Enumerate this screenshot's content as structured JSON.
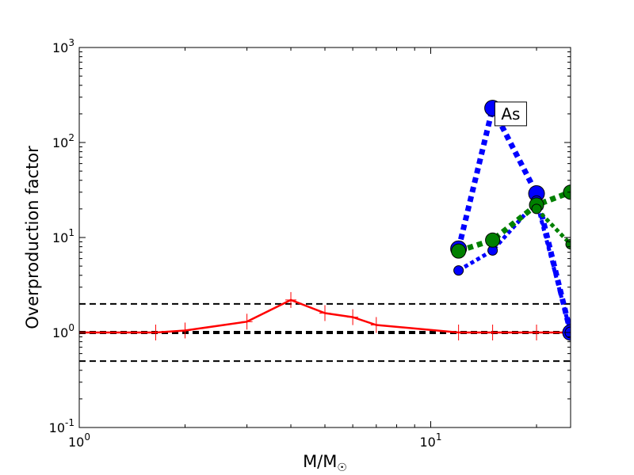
{
  "chart_data": {
    "type": "line",
    "title": "",
    "xlabel": "M/M☉",
    "ylabel": "Overproduction factor",
    "x_scale": "log",
    "y_scale": "log",
    "xlim": [
      1,
      25
    ],
    "ylim": [
      0.1,
      1000
    ],
    "grid": false,
    "x_ticks": [
      {
        "value": 1,
        "base": "10",
        "exp": "0"
      },
      {
        "value": 10,
        "base": "10",
        "exp": "1"
      }
    ],
    "y_ticks": [
      {
        "value": 0.1,
        "base": "10",
        "exp": "-1"
      },
      {
        "value": 1,
        "base": "10",
        "exp": "0"
      },
      {
        "value": 10,
        "base": "10",
        "exp": "1"
      },
      {
        "value": 100,
        "base": "10",
        "exp": "2"
      },
      {
        "value": 1000,
        "base": "10",
        "exp": "3"
      }
    ],
    "reference_lines": [
      {
        "y": 2.0,
        "style": "dashed",
        "color": "#000000",
        "width": 2
      },
      {
        "y": 1.0,
        "style": "dashed",
        "color": "#000000",
        "width": 4
      },
      {
        "y": 0.5,
        "style": "dashed",
        "color": "#000000",
        "width": 2
      }
    ],
    "series": [
      {
        "color": "#ff0000",
        "style": "solid",
        "width": 2.5,
        "marker": "plus",
        "points": [
          [
            1.0,
            1.0
          ],
          [
            1.65,
            1.0
          ],
          [
            2.0,
            1.05
          ],
          [
            3.0,
            1.3
          ],
          [
            4.0,
            2.2
          ],
          [
            5.0,
            1.6
          ],
          [
            6.0,
            1.45
          ],
          [
            7.0,
            1.2
          ],
          [
            12.0,
            1.0
          ],
          [
            15.0,
            1.0
          ],
          [
            20.0,
            1.0
          ],
          [
            25.0,
            1.0
          ]
        ]
      },
      {
        "color": "#0000ff",
        "style": "dotted",
        "width": 7,
        "marker": "circle",
        "points": [
          [
            12.0,
            7.6,
            10
          ],
          [
            15.0,
            230.0,
            10
          ],
          [
            20.0,
            29.0,
            10
          ],
          [
            25.0,
            1.0,
            10
          ]
        ]
      },
      {
        "color": "#0000ff",
        "style": "dotted",
        "width": 5,
        "marker": "circle",
        "points": [
          [
            12.0,
            4.5,
            6
          ],
          [
            15.0,
            7.3,
            6
          ],
          [
            20.0,
            24.0,
            7
          ],
          [
            25.0,
            1.0,
            7
          ]
        ]
      },
      {
        "color": "#008000",
        "style": "dotted",
        "width": 7,
        "marker": "circle",
        "points": [
          [
            12.0,
            7.2,
            9
          ],
          [
            15.0,
            9.4,
            9
          ],
          [
            20.0,
            22.0,
            9
          ],
          [
            25.0,
            30.0,
            9
          ]
        ]
      },
      {
        "color": "#008000",
        "style": "dotted",
        "width": 5,
        "marker": "circle",
        "points": [
          [
            20.0,
            20.0,
            6
          ],
          [
            25.0,
            8.5,
            6
          ]
        ]
      }
    ],
    "annotations": [
      {
        "text": "As",
        "x": 16.8,
        "y": 200
      }
    ]
  }
}
